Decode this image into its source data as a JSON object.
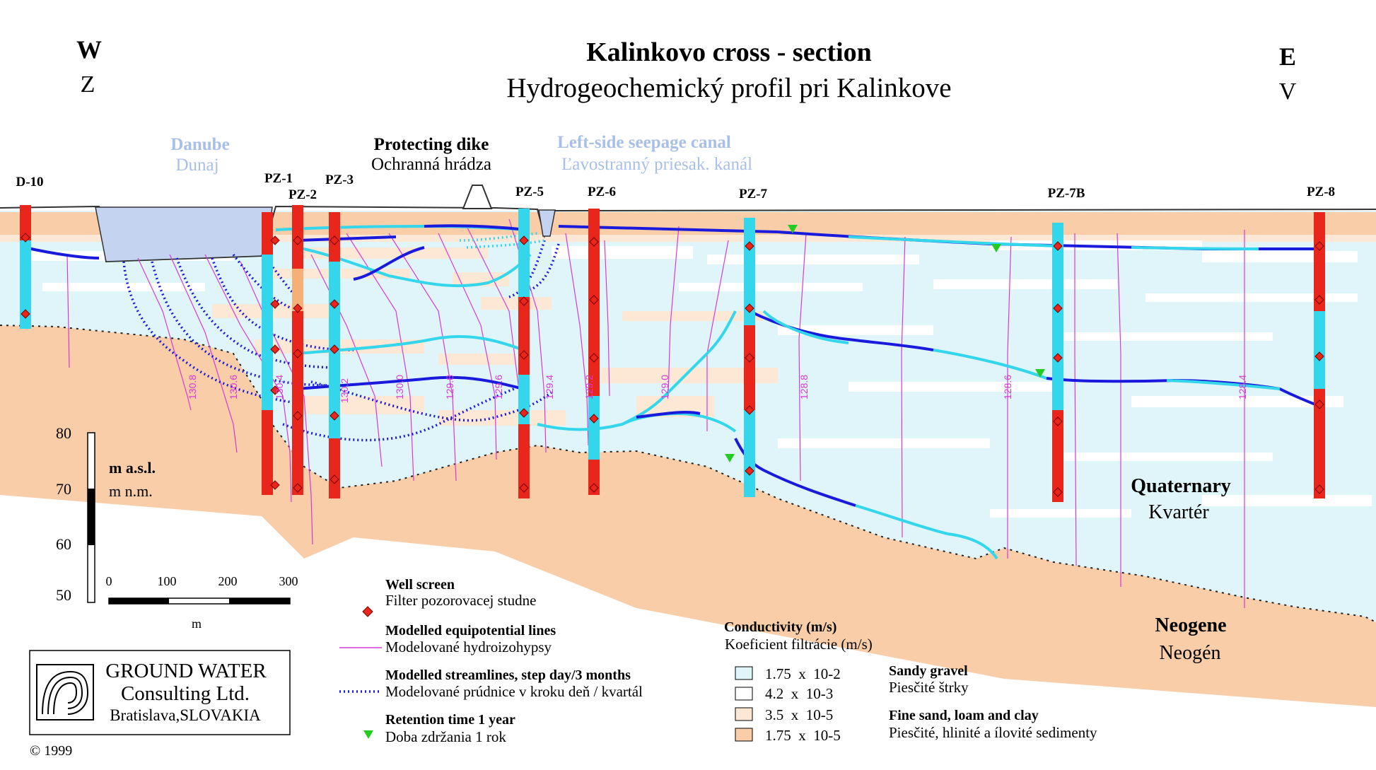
{
  "header": {
    "title": "Kalinkovo cross - section",
    "subtitle": "Hydrogeochemický profil pri Kalinkove",
    "west": "W",
    "west_local": "Z",
    "east": "E",
    "east_local": "V"
  },
  "features": {
    "danube": "Danube",
    "danube_local": "Dunaj",
    "dike": "Protecting dike",
    "dike_local": "Ochranná hrádza",
    "canal": "Left-side seepage canal",
    "canal_local": "Ľavostranný priesak. kanál"
  },
  "wells": [
    "D-10",
    "PZ-1",
    "PZ-2",
    "PZ-3",
    "PZ-5",
    "PZ-6",
    "PZ-7",
    "PZ-7B",
    "PZ-8"
  ],
  "equipotential_labels": [
    "130.8",
    "130.6",
    "130.4",
    "130.2",
    "130.0",
    "129.8",
    "129.6",
    "129.4",
    "129.2",
    "129.0",
    "128.8",
    "128.6",
    "128.4"
  ],
  "units": {
    "quaternary": "Quaternary",
    "quaternary_local": "Kvartér",
    "neogene": "Neogene",
    "neogene_local": "Neogén"
  },
  "elevation_scale": {
    "ticks": [
      "80",
      "70",
      "60",
      "50"
    ],
    "unit": "m a.s.l.",
    "unit_local": "m n.m."
  },
  "distance_scale": {
    "ticks": [
      "0",
      "100",
      "200",
      "300"
    ],
    "unit": "m"
  },
  "legend": {
    "well_screen": "Well screen",
    "well_screen_local": "Filter pozorovacej studne",
    "equipotential": "Modelled equipotential lines",
    "equipotential_local": "Modelované hydroizohypsy",
    "streamlines": "Modelled streamlines, step day/3 months",
    "streamlines_local": "Modelované prúdnice v kroku deň / kvartál",
    "retention": "Retention time 1 year",
    "retention_local": "Doba zdržania 1 rok",
    "conductivity_title": "Conductivity (m/s)",
    "conductivity_title_local": "Koeficient filtrácie (m/s)",
    "conductivity_classes": [
      {
        "label": "1.75  x  10-2",
        "color": "#dff5fa"
      },
      {
        "label": "4.2  x  10-3",
        "color": "#ffffff"
      },
      {
        "label": "3.5  x  10-5",
        "color": "#fde7d5"
      },
      {
        "label": "1.75  x  10-5",
        "color": "#f9cda8"
      }
    ],
    "sandy_gravel": "Sandy gravel",
    "sandy_gravel_local": "Piesčité štrky",
    "fine_sand": "Fine sand, loam and clay",
    "fine_sand_local": "Piesčité, hlinité a ílovité sedimenty"
  },
  "company": {
    "line1": "GROUND WATER",
    "line2": "Consulting Ltd.",
    "line3": "Bratislava,SLOVAKIA",
    "copyright": "©  1999"
  },
  "colors": {
    "neogene": "#f9cda8",
    "gravel": "#dff5fa",
    "fine_lens": "#fde7d5",
    "water": "#c4d3f0",
    "equipotential": "#d63ad6",
    "streamline": "#1a1adc",
    "streamline_light": "#33d6ea",
    "screen": "#e8261c",
    "retention": "#22cc22"
  }
}
